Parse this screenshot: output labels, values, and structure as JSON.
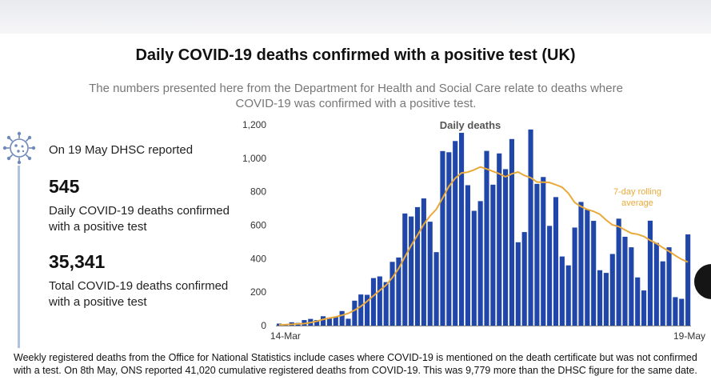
{
  "title": "Daily COVID-19 deaths confirmed with a positive test (UK)",
  "subtitle": "The numbers presented here from the Department for Health and Social Care relate to deaths where COVID-19 was confirmed with a positive test.",
  "summary": {
    "reported": "On 19 May DHSC reported",
    "daily_value": "545",
    "daily_label": "Daily COVID-19 deaths confirmed with a positive test",
    "total_value": "35,341",
    "total_label": "Total COVID-19 deaths confirmed with a positive test"
  },
  "footnote": "Weekly registered deaths from the Office for National Statistics include cases where COVID-19 is mentioned on the death certificate but was not confirmed with a test. On 8th May, ONS reported 41,020 cumulative registered deaths from COVID-19. This was 9,779 more than the DHSC figure for the same date.",
  "colors": {
    "bar": "#1f46a8",
    "avg_line": "#e9a93b",
    "accent_line": "#aec2e4"
  },
  "icons": {
    "virus": "virus-icon"
  },
  "chart_data": {
    "type": "bar",
    "title": "Daily deaths",
    "x_tick_labels": [
      "14-Mar",
      "19-May"
    ],
    "ylim": [
      0,
      1200
    ],
    "y_ticks": [
      "0",
      "200",
      "400",
      "600",
      "800",
      "1,000",
      "1,200"
    ],
    "y_tick_values": [
      0,
      200,
      400,
      600,
      800,
      1000,
      1200
    ],
    "grid": false,
    "series": [
      {
        "type": "bar",
        "values": [
          12,
          5,
          20,
          16,
          33,
          40,
          33,
          56,
          48,
          54,
          87,
          41,
          149,
          186,
          184,
          284,
          294,
          260,
          381,
          407,
          670,
          652,
          708,
          760,
          621,
          439,
          1043,
          1036,
          1103,
          1152,
          839,
          686,
          744,
          1044,
          842,
          1029,
          935,
          1115,
          498,
          559,
          1172,
          847,
          888,
          596,
          768,
          413,
          360,
          586,
          739,
          693,
          626,
          331,
          315,
          428,
          639,
          531,
          468,
          288,
          210,
          627,
          494,
          384,
          468,
          170,
          160,
          545
        ]
      },
      {
        "type": "line",
        "name": "7-day rolling average",
        "values": [
          5,
          6,
          8,
          10,
          12,
          18,
          26,
          37,
          45,
          52,
          62,
          73,
          92,
          115,
          145,
          178,
          210,
          241,
          286,
          340,
          410,
          478,
          540,
          605,
          655,
          695,
          762,
          832,
          880,
          912,
          917,
          931,
          948,
          936,
          922,
          908,
          889,
          907,
          918,
          897,
          884,
          858,
          857,
          855,
          842,
          827,
          791,
          736,
          712,
          694,
          683,
          665,
          631,
          602,
          592,
          572,
          552,
          546,
          533,
          510,
          491,
          466,
          444,
          419,
          396,
          380
        ]
      }
    ]
  }
}
